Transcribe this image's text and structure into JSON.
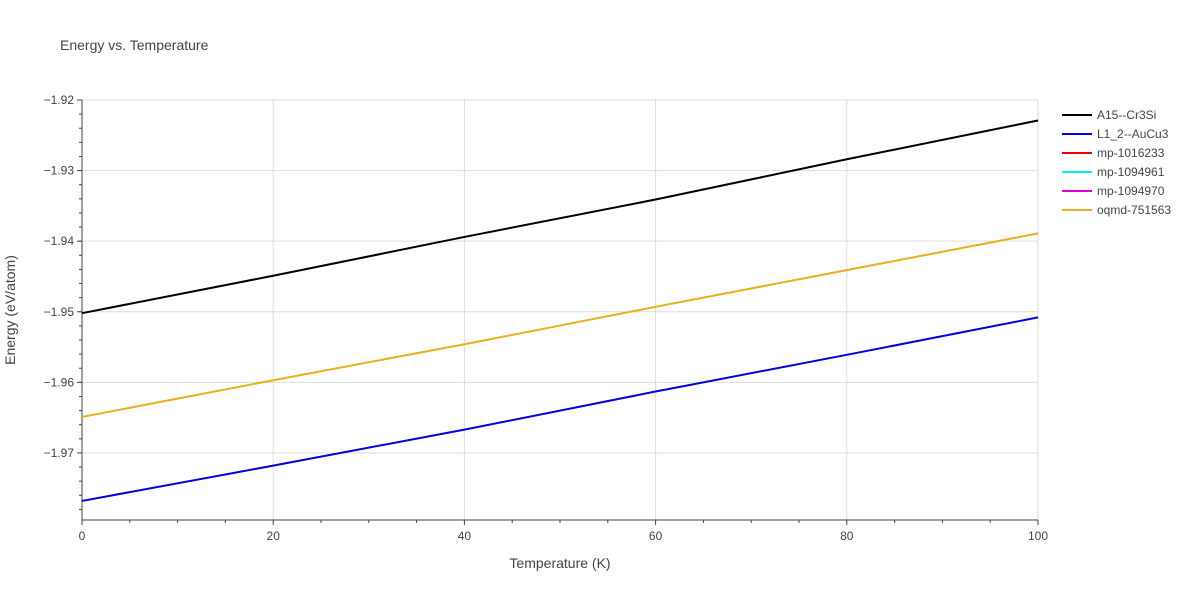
{
  "chart_data": {
    "type": "line",
    "title": "Energy vs. Temperature",
    "xlabel": "Temperature (K)",
    "ylabel": "Energy (eV/atom)",
    "xlim": [
      0,
      100
    ],
    "ylim": [
      -1.9795,
      -1.92
    ],
    "x_ticks": [
      0,
      20,
      40,
      60,
      80,
      100
    ],
    "x_tick_labels": [
      "0",
      "20",
      "40",
      "60",
      "80",
      "100"
    ],
    "y_ticks": [
      -1.97,
      -1.96,
      -1.95,
      -1.94,
      -1.93,
      -1.92
    ],
    "y_tick_labels": [
      "−1.97",
      "−1.96",
      "−1.95",
      "−1.94",
      "−1.93",
      "−1.92"
    ],
    "grid": true,
    "legend_position": "right",
    "series": [
      {
        "name": "A15--Cr3Si",
        "color": "#000000",
        "x": [
          0,
          20,
          40,
          60,
          80,
          100
        ],
        "values": [
          -1.9502,
          -1.9449,
          -1.9394,
          -1.9341,
          -1.9284,
          -1.9229
        ]
      },
      {
        "name": "L1_2--AuCu3",
        "color": "#0000dd",
        "x": [
          0,
          20,
          40,
          60,
          80,
          100
        ],
        "values": [
          -1.9768,
          -1.9718,
          -1.9667,
          -1.9613,
          -1.9561,
          -1.9508
        ]
      },
      {
        "name": "mp-1016233",
        "color": "#ee0000",
        "x": [],
        "values": []
      },
      {
        "name": "mp-1094961",
        "color": "#00eeee",
        "x": [],
        "values": []
      },
      {
        "name": "mp-1094970",
        "color": "#dd00dd",
        "x": [],
        "values": []
      },
      {
        "name": "oqmd-751563",
        "color": "#e6b020",
        "x": [
          0,
          20,
          40,
          60,
          80,
          100
        ],
        "values": [
          -1.9649,
          -1.9597,
          -1.9546,
          -1.9493,
          -1.9441,
          -1.9389
        ]
      }
    ]
  }
}
